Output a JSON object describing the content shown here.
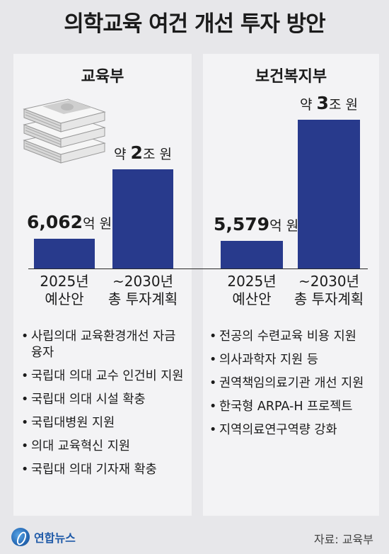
{
  "title": "의학교육 여건 개선 투자 방안",
  "panels": [
    {
      "heading": "교육부",
      "bars": [
        {
          "prefix": "",
          "value_text": "6,062",
          "unit": "억 원",
          "category_line1": "2025년",
          "category_line2": "예산안"
        },
        {
          "prefix": "약 ",
          "value_text": "2",
          "unit": "조 원",
          "category_line1": "~2030년",
          "category_line2": "총 투자계획"
        }
      ],
      "items": [
        "사립의대 교육환경개선 자금 융자",
        "국립대 의대 교수 인건비 지원",
        "국립대 의대 시설 확충",
        "국립대병원 지원",
        "의대 교육혁신 지원",
        "국립대 의대 기자재 확충"
      ]
    },
    {
      "heading": "보건복지부",
      "bars": [
        {
          "prefix": "",
          "value_text": "5,579",
          "unit": "억 원",
          "category_line1": "2025년",
          "category_line2": "예산안"
        },
        {
          "prefix": "약 ",
          "value_text": "3",
          "unit": "조 원",
          "category_line1": "~2030년",
          "category_line2": "총 투자계획"
        }
      ],
      "items": [
        "전공의 수련교육 비용 지원",
        "의사과학자 지원 등",
        "권역책임의료기관 개선 지원",
        "한국형 ARPA-H 프로젝트",
        "지역의료연구역량 강화"
      ]
    }
  ],
  "chart_data": [
    {
      "type": "bar",
      "title": "교육부",
      "categories": [
        "2025년 예산안",
        "~2030년 총 투자계획"
      ],
      "values": [
        6062,
        20000
      ],
      "unit": "억 원"
    },
    {
      "type": "bar",
      "title": "보건복지부",
      "categories": [
        "2025년 예산안",
        "~2030년 총 투자계획"
      ],
      "values": [
        5579,
        30000
      ],
      "unit": "억 원"
    }
  ],
  "colors": {
    "bar": "#283a8c",
    "background": "#e7e7ea",
    "panel": "#f3f3f5"
  },
  "footer": {
    "logo_text": "연합뉴스",
    "source": "자료: 교육부"
  },
  "icons": {
    "money": "money-stack-icon",
    "logo": "yonhap-logo-icon"
  }
}
